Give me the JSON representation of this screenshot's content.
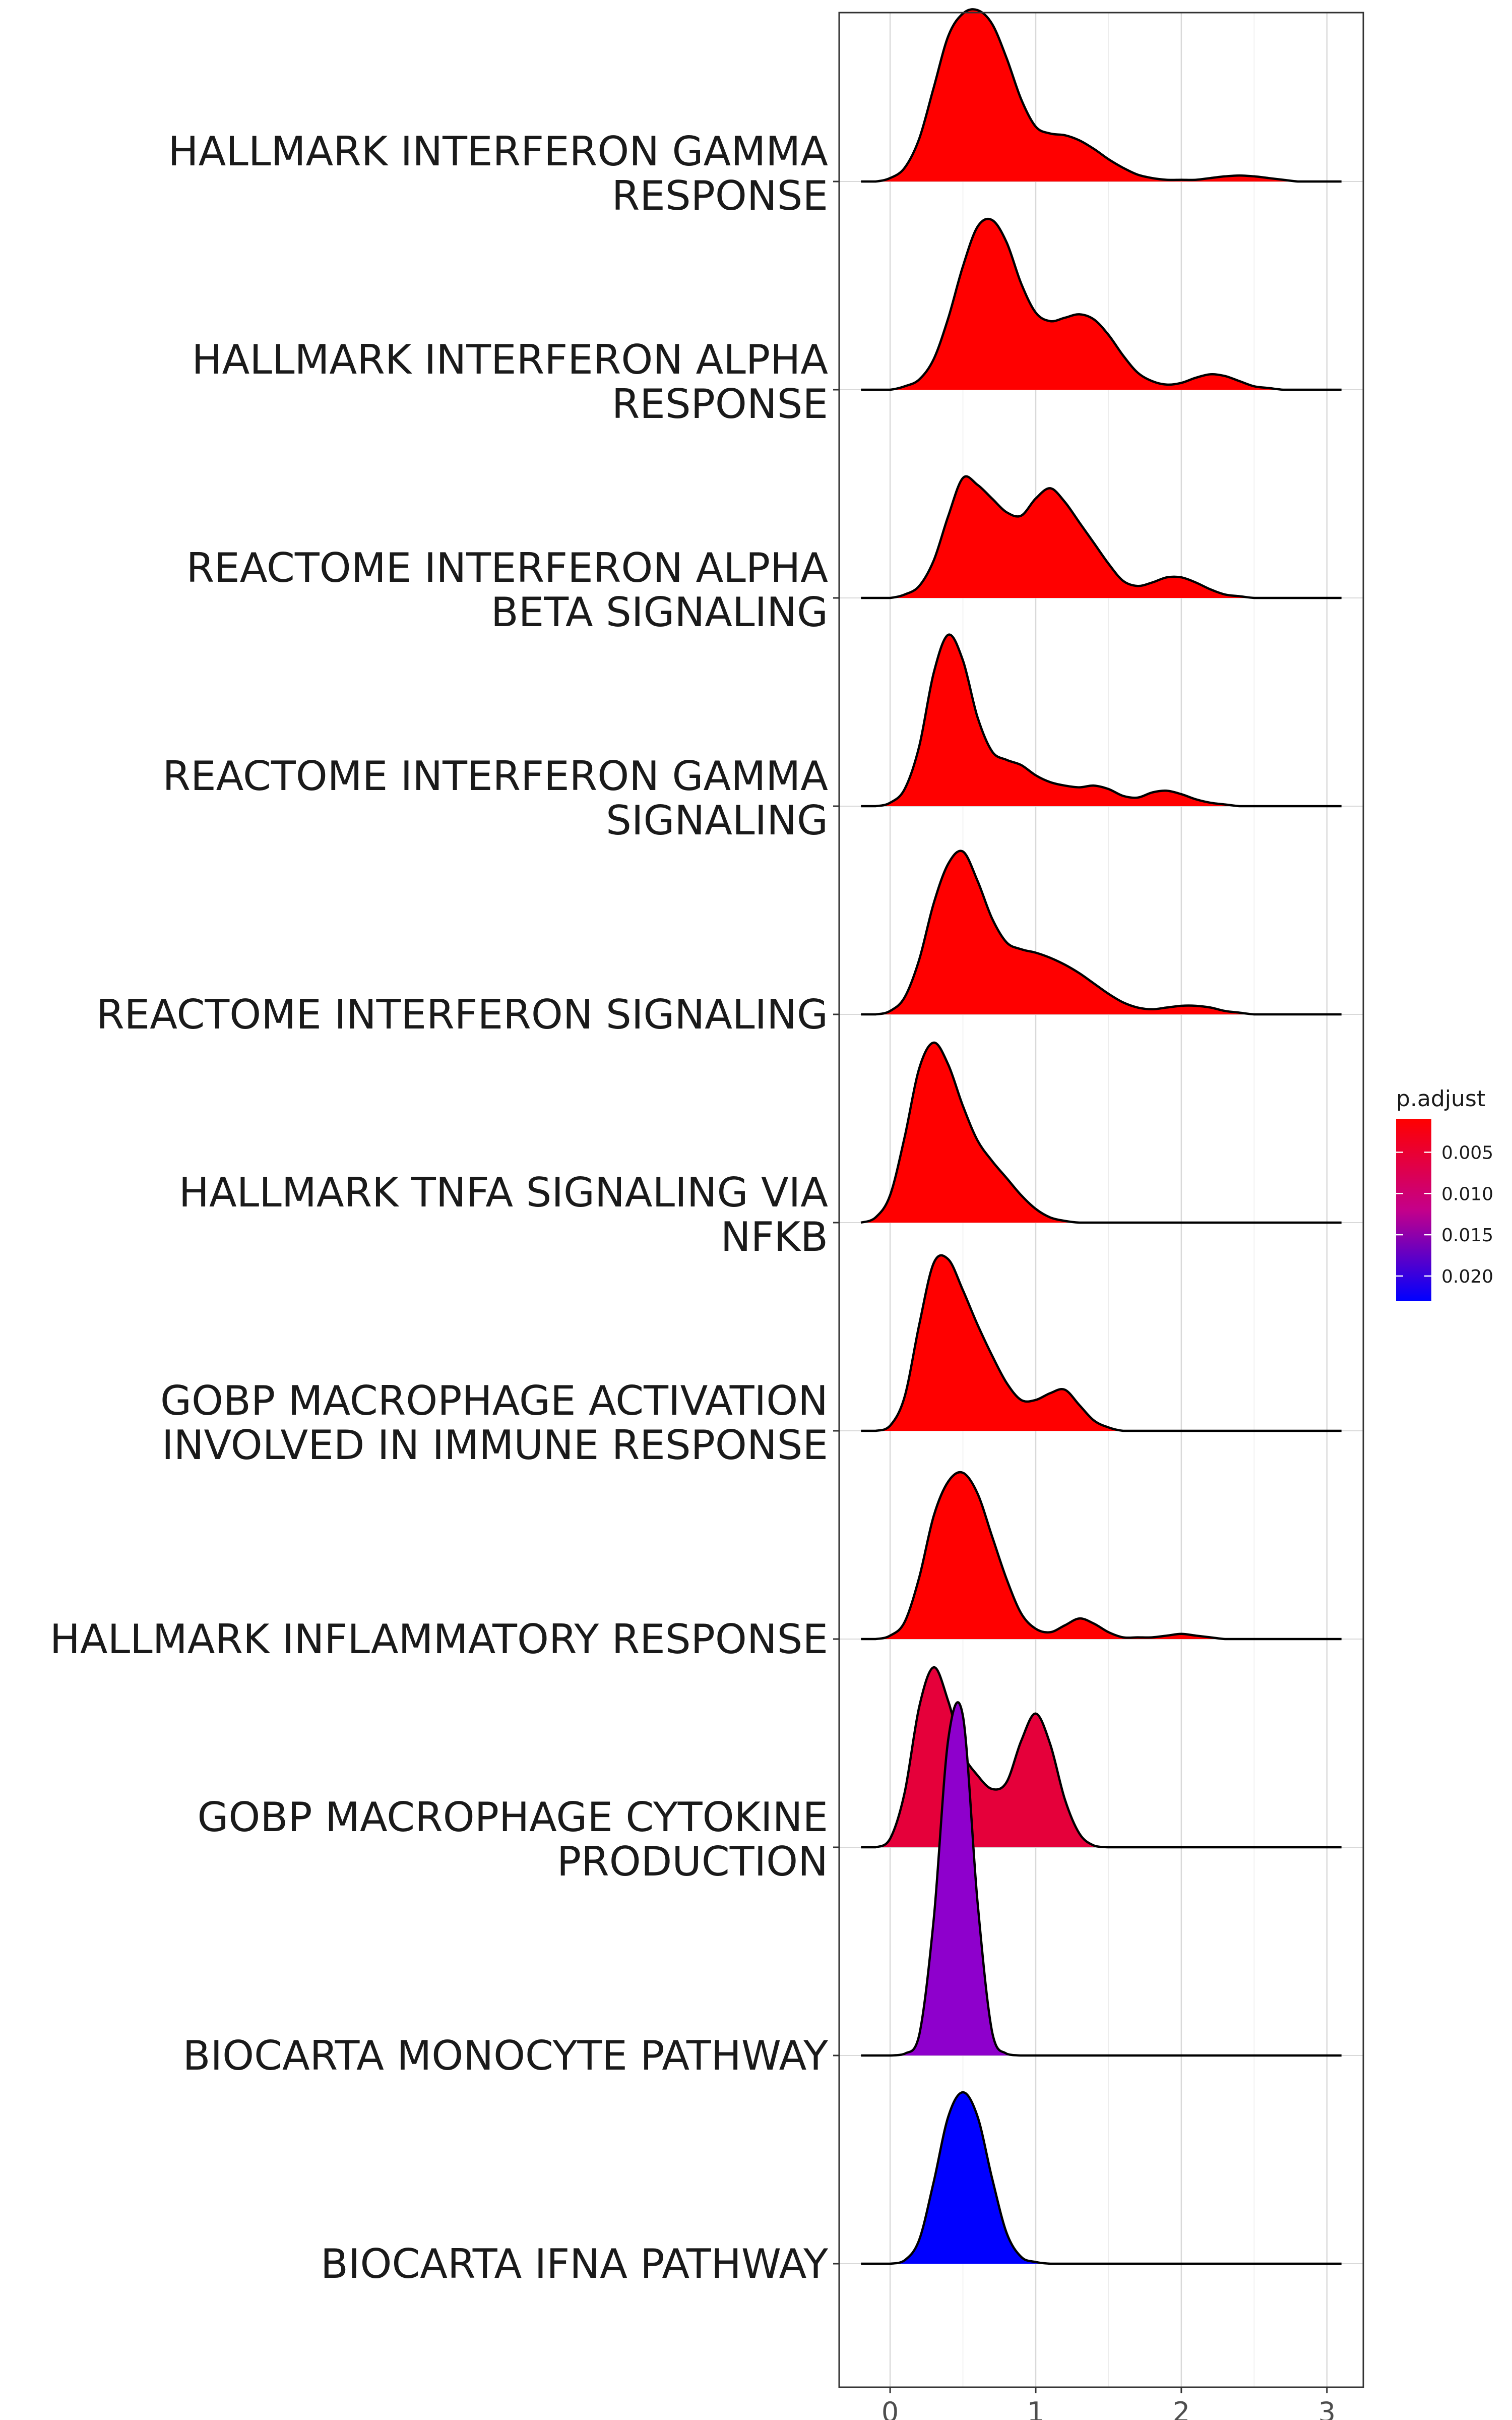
{
  "chart_data": {
    "type": "ridgeline",
    "x_ticks": [
      0,
      1,
      2,
      3
    ],
    "xlim": [
      -0.35,
      3.25
    ],
    "grid": true,
    "legend": {
      "title": "p.adjust",
      "position": "right",
      "type": "colorbar",
      "range": [
        0.001,
        0.023
      ],
      "low_color": "#FF0000",
      "high_color": "#0000FF",
      "ticks": [
        {
          "value": 0.005,
          "label": "0.005"
        },
        {
          "value": 0.01,
          "label": "0.010"
        },
        {
          "value": 0.015,
          "label": "0.015"
        },
        {
          "value": 0.02,
          "label": "0.020"
        }
      ]
    },
    "x": [
      -0.2,
      -0.1,
      0.0,
      0.1,
      0.2,
      0.3,
      0.4,
      0.5,
      0.6,
      0.7,
      0.8,
      0.9,
      1.0,
      1.1,
      1.2,
      1.3,
      1.4,
      1.5,
      1.6,
      1.7,
      1.8,
      1.9,
      2.0,
      2.1,
      2.2,
      2.3,
      2.4,
      2.5,
      2.6,
      2.7,
      2.8,
      2.9,
      3.0,
      3.1
    ],
    "series": [
      {
        "name": "HALLMARK INTERFERON GAMMA\nRESPONSE",
        "p_adjust": 0.001,
        "color": "#FF0000",
        "density": [
          0,
          0,
          0.02,
          0.08,
          0.25,
          0.55,
          0.85,
          0.98,
          1.0,
          0.92,
          0.72,
          0.48,
          0.32,
          0.28,
          0.27,
          0.24,
          0.19,
          0.13,
          0.08,
          0.04,
          0.02,
          0.01,
          0.01,
          0.01,
          0.02,
          0.03,
          0.035,
          0.03,
          0.02,
          0.01,
          0,
          0,
          0,
          0
        ]
      },
      {
        "name": "HALLMARK INTERFERON ALPHA\nRESPONSE",
        "p_adjust": 0.001,
        "color": "#FF0000",
        "density": [
          0,
          0,
          0,
          0.02,
          0.06,
          0.18,
          0.42,
          0.72,
          0.95,
          0.99,
          0.86,
          0.62,
          0.45,
          0.4,
          0.42,
          0.44,
          0.41,
          0.32,
          0.2,
          0.1,
          0.05,
          0.03,
          0.04,
          0.07,
          0.09,
          0.08,
          0.05,
          0.02,
          0.01,
          0,
          0,
          0,
          0,
          0
        ]
      },
      {
        "name": "REACTOME INTERFERON ALPHA\nBETA SIGNALING",
        "p_adjust": 0.001,
        "color": "#FF0000",
        "density": [
          0,
          0,
          0,
          0.02,
          0.07,
          0.22,
          0.48,
          0.7,
          0.66,
          0.58,
          0.5,
          0.48,
          0.58,
          0.64,
          0.56,
          0.44,
          0.32,
          0.2,
          0.1,
          0.07,
          0.09,
          0.12,
          0.12,
          0.09,
          0.05,
          0.02,
          0.01,
          0,
          0,
          0,
          0,
          0,
          0,
          0
        ]
      },
      {
        "name": "REACTOME INTERFERON GAMMA\nSIGNALING",
        "p_adjust": 0.001,
        "color": "#FF0000",
        "density": [
          0,
          0,
          0.02,
          0.1,
          0.35,
          0.78,
          1.0,
          0.85,
          0.52,
          0.32,
          0.27,
          0.24,
          0.18,
          0.14,
          0.12,
          0.11,
          0.12,
          0.1,
          0.06,
          0.05,
          0.08,
          0.09,
          0.07,
          0.04,
          0.02,
          0.01,
          0,
          0,
          0,
          0,
          0,
          0,
          0,
          0
        ]
      },
      {
        "name": "REACTOME INTERFERON SIGNALING",
        "p_adjust": 0.001,
        "color": "#FF0000",
        "density": [
          0,
          0,
          0.02,
          0.1,
          0.32,
          0.65,
          0.88,
          0.95,
          0.78,
          0.56,
          0.42,
          0.38,
          0.36,
          0.33,
          0.29,
          0.24,
          0.18,
          0.12,
          0.07,
          0.04,
          0.03,
          0.04,
          0.05,
          0.05,
          0.04,
          0.02,
          0.01,
          0,
          0,
          0,
          0,
          0,
          0,
          0
        ]
      },
      {
        "name": "HALLMARK TNFA SIGNALING VIA\nNFKB",
        "p_adjust": 0.001,
        "color": "#FF0000",
        "density": [
          0,
          0.03,
          0.16,
          0.5,
          0.9,
          1.05,
          0.92,
          0.68,
          0.48,
          0.36,
          0.26,
          0.16,
          0.08,
          0.03,
          0.01,
          0,
          0,
          0,
          0,
          0,
          0,
          0,
          0,
          0,
          0,
          0,
          0,
          0,
          0,
          0,
          0,
          0,
          0,
          0
        ]
      },
      {
        "name": "GOBP MACROPHAGE ACTIVATION\nINVOLVED IN IMMUNE RESPONSE",
        "p_adjust": 0.001,
        "color": "#FF0000",
        "density": [
          0,
          0,
          0.03,
          0.2,
          0.62,
          0.98,
          1.0,
          0.82,
          0.62,
          0.44,
          0.28,
          0.18,
          0.18,
          0.22,
          0.24,
          0.15,
          0.06,
          0.02,
          0,
          0,
          0,
          0,
          0,
          0,
          0,
          0,
          0,
          0,
          0,
          0,
          0,
          0,
          0,
          0
        ]
      },
      {
        "name": "HALLMARK INFLAMMATORY RESPONSE",
        "p_adjust": 0.001,
        "color": "#FF0000",
        "density": [
          0,
          0,
          0.02,
          0.1,
          0.36,
          0.72,
          0.92,
          0.97,
          0.85,
          0.6,
          0.35,
          0.15,
          0.06,
          0.04,
          0.08,
          0.12,
          0.09,
          0.04,
          0.01,
          0.01,
          0.01,
          0.02,
          0.03,
          0.02,
          0.01,
          0,
          0,
          0,
          0,
          0,
          0,
          0,
          0,
          0
        ]
      },
      {
        "name": "GOBP MACROPHAGE CYTOKINE\nPRODUCTION",
        "p_adjust": 0.003,
        "color": "#E5003A",
        "density": [
          0,
          0,
          0.05,
          0.32,
          0.82,
          1.05,
          0.85,
          0.55,
          0.42,
          0.34,
          0.38,
          0.62,
          0.78,
          0.6,
          0.28,
          0.08,
          0.01,
          0,
          0,
          0,
          0,
          0,
          0,
          0,
          0,
          0,
          0,
          0,
          0,
          0,
          0,
          0,
          0,
          0
        ]
      },
      {
        "name": "BIOCARTA MONOCYTE PATHWAY",
        "p_adjust": 0.015,
        "color": "#8E00CC",
        "density": [
          0,
          0,
          0,
          0.01,
          0.12,
          0.8,
          1.85,
          1.98,
          0.9,
          0.14,
          0.01,
          0,
          0,
          0,
          0,
          0,
          0,
          0,
          0,
          0,
          0,
          0,
          0,
          0,
          0,
          0,
          0,
          0,
          0,
          0,
          0,
          0,
          0,
          0
        ]
      },
      {
        "name": "BIOCARTA IFNA PATHWAY",
        "p_adjust": 0.023,
        "color": "#0000FF",
        "density": [
          0,
          0,
          0,
          0.02,
          0.14,
          0.48,
          0.86,
          1.0,
          0.86,
          0.5,
          0.18,
          0.04,
          0.01,
          0,
          0,
          0,
          0,
          0,
          0,
          0,
          0,
          0,
          0,
          0,
          0,
          0,
          0,
          0,
          0,
          0,
          0,
          0,
          0,
          0
        ]
      }
    ]
  }
}
